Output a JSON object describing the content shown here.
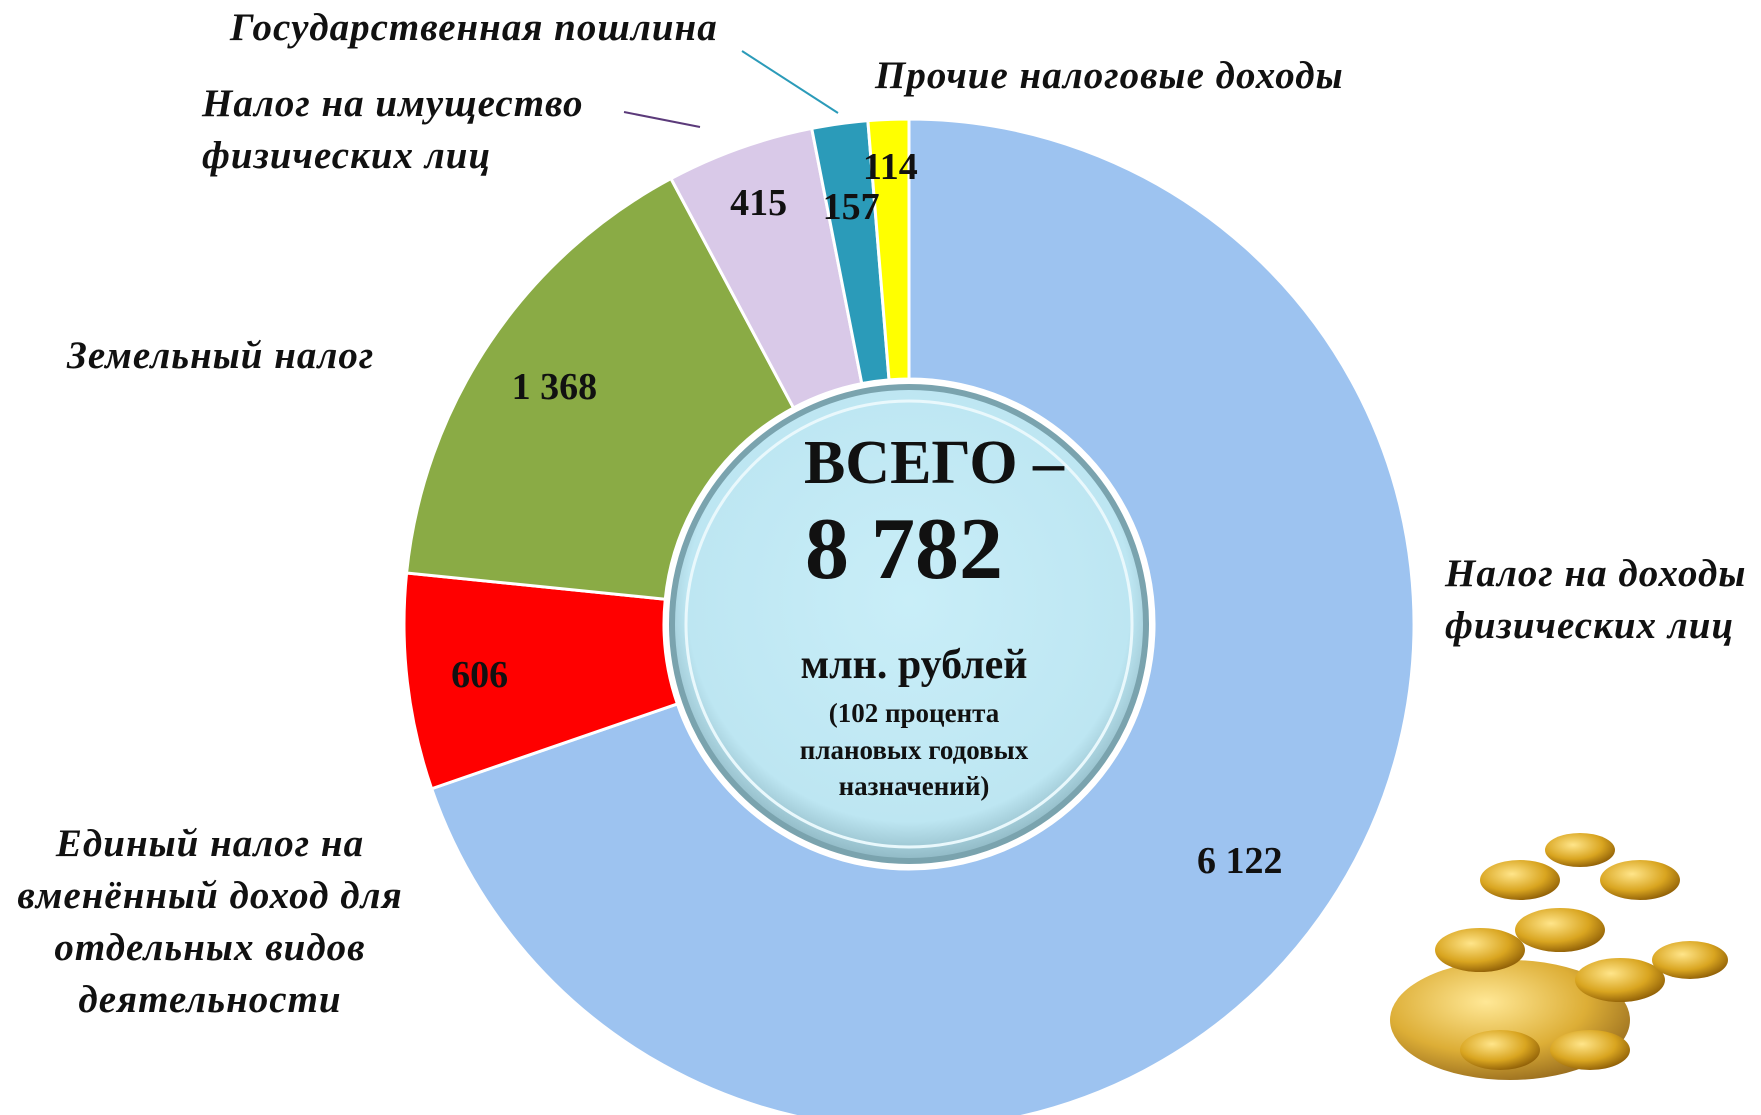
{
  "chart_data": {
    "type": "donut",
    "categories": [
      "Налог на доходы физических лиц",
      "Единый налог на вменённый доход для отдельных видов деятельности",
      "Земельный налог",
      "Налог на имущество физических лиц",
      "Государственная пошлина",
      "Прочие налоговые доходы"
    ],
    "values": [
      6122,
      606,
      1368,
      415,
      157,
      114
    ],
    "value_labels": [
      "6 122",
      "606",
      "1 368",
      "415",
      "157",
      "114"
    ],
    "colors": [
      "#9dc3f0",
      "#ff0000",
      "#8aab45",
      "#d9c9e8",
      "#2b9bb9",
      "#ffff00"
    ],
    "center_text": [
      "ВСЕГО –",
      "8 782",
      "млн. рублей",
      "(102 процента",
      "плановых годовых",
      "назначений)"
    ]
  }
}
